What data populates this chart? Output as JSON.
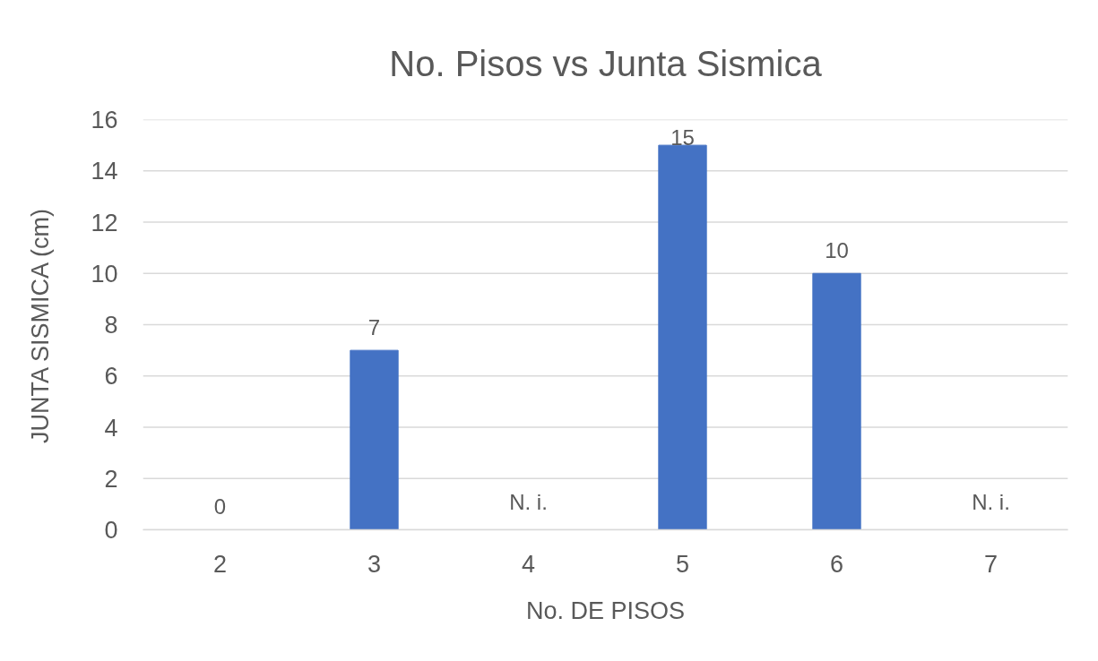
{
  "chart_data": {
    "type": "bar",
    "title": "No. Pisos vs Junta Sismica",
    "xlabel": "No. DE PISOS",
    "ylabel": "JUNTA SISMICA (cm)",
    "categories": [
      "2",
      "3",
      "4",
      "5",
      "6",
      "7"
    ],
    "values": [
      0,
      7,
      null,
      15,
      10,
      null
    ],
    "value_labels": [
      "0",
      "7",
      "N. i.",
      "15",
      "10",
      "N. i."
    ],
    "color": "#4472c4",
    "ylim": [
      0,
      16
    ],
    "yticks": [
      0,
      2,
      4,
      6,
      8,
      10,
      12,
      14,
      16
    ],
    "grid": "y"
  }
}
